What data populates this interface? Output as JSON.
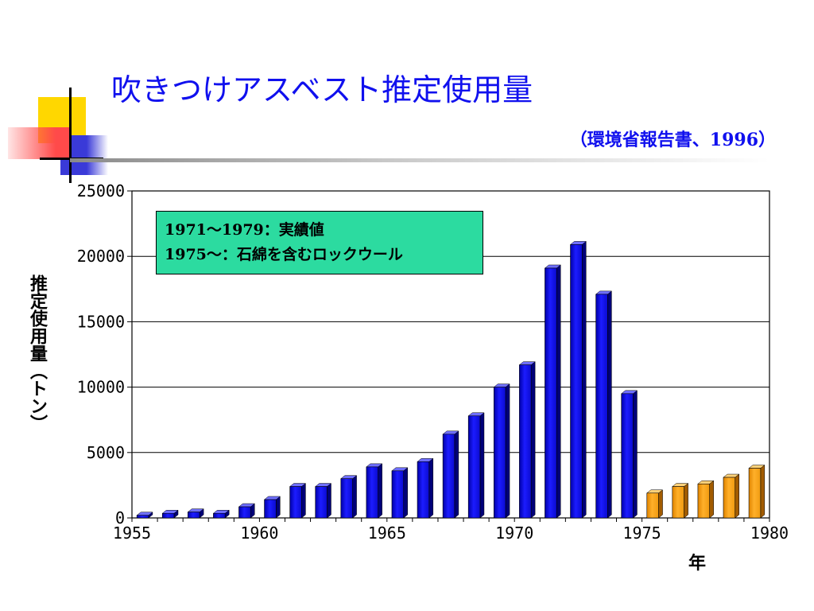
{
  "slide": {
    "title": "吹きつけアスベスト推定使用量",
    "subtitle": "（環境省報告書、1996）"
  },
  "chart_data": {
    "type": "bar",
    "ylabel": "推定使用量（トン）",
    "xlabel": "年",
    "ylim": [
      0,
      25000
    ],
    "yticks": [
      0,
      5000,
      10000,
      15000,
      20000,
      25000
    ],
    "xlim": [
      1955,
      1980
    ],
    "xticks": [
      1955,
      1960,
      1965,
      1970,
      1975,
      1980
    ],
    "grid": true,
    "annotation": [
      "1971～1979：実績値",
      "1975～：石綿を含むロックウール"
    ],
    "series": [
      {
        "color": "#0a0aee",
        "x": [
          1955,
          1956,
          1957,
          1958,
          1959,
          1960,
          1961,
          1962,
          1963,
          1964,
          1965,
          1966,
          1967,
          1968,
          1969,
          1970,
          1971,
          1972,
          1973,
          1974
        ],
        "values": [
          200,
          350,
          450,
          350,
          850,
          1400,
          2400,
          2400,
          3000,
          3900,
          3600,
          4300,
          6400,
          7800,
          10000,
          11700,
          19100,
          20900,
          17100,
          9500
        ]
      },
      {
        "color": "#ffa31a",
        "x": [
          1975,
          1976,
          1977,
          1978,
          1979
        ],
        "values": [
          1900,
          2400,
          2600,
          3100,
          3800
        ]
      }
    ]
  }
}
